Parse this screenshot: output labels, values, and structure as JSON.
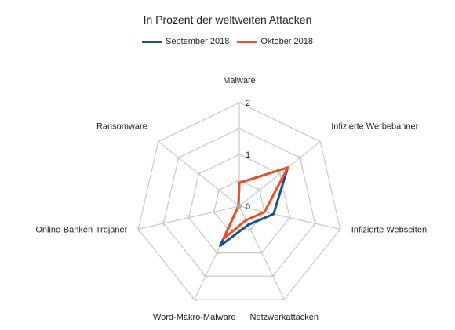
{
  "chart_data": {
    "type": "radar",
    "title": "In Prozent der weltweiten Attacken",
    "categories": [
      "Malware",
      "Infizierte Werbebanner",
      "Infizierte Webseiten",
      "Netzwerkattacken",
      "Word-Makro-Malware",
      "Online-Banken-Trojaner",
      "Ransomware"
    ],
    "series": [
      {
        "name": "September 2018",
        "color": "#1f4e8c",
        "values": [
          0.45,
          1.2,
          0.68,
          0.4,
          0.85,
          0.02,
          0.02
        ]
      },
      {
        "name": "Oktober 2018",
        "color": "#e8522a",
        "values": [
          0.45,
          1.2,
          0.5,
          0.3,
          0.7,
          0.02,
          0.02
        ]
      }
    ],
    "rlim": [
      0,
      2
    ],
    "ticks": [
      "0",
      "1",
      "2"
    ],
    "grid": true,
    "legend_position": "top"
  }
}
